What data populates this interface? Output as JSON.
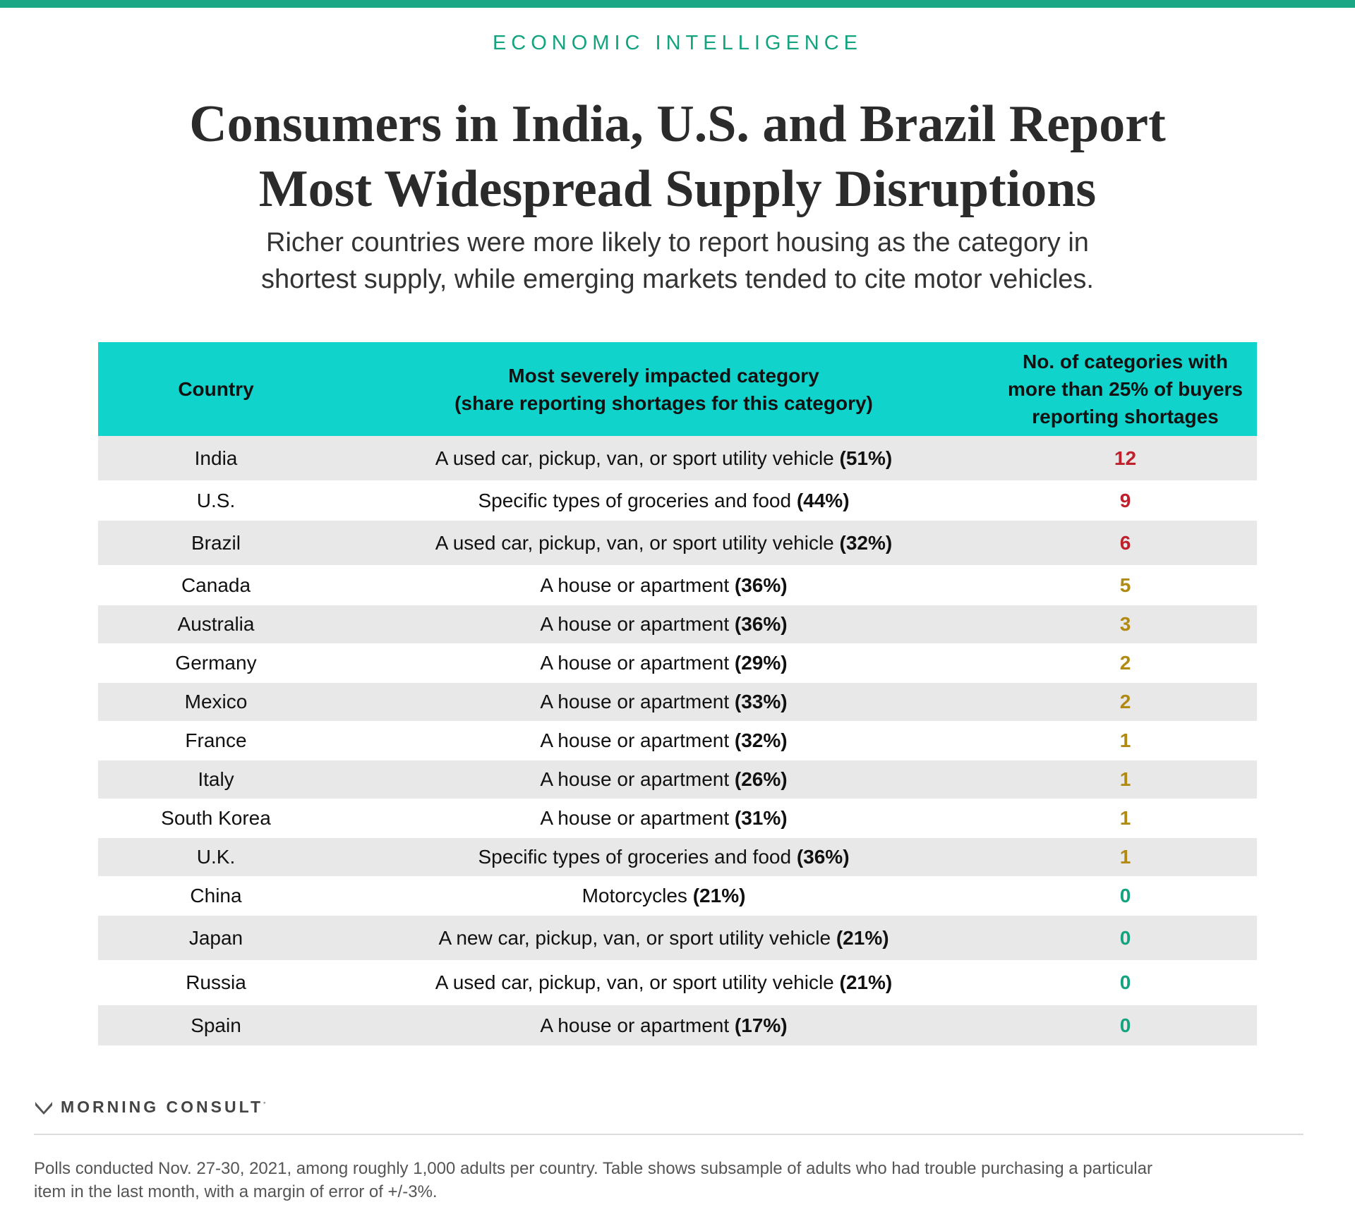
{
  "header": {
    "eyebrow": "ECONOMIC INTELLIGENCE",
    "title_line1": "Consumers in India, U.S. and Brazil Report",
    "title_line2": "Most Widespread Supply Disruptions",
    "subtitle_line1": "Richer countries were more likely to report housing as the category in",
    "subtitle_line2": "shortest supply, while emerging markets tended to cite motor vehicles."
  },
  "colors": {
    "accent": "#1aa786",
    "header_fill": "#10d3cc",
    "high": "#c0202b",
    "medium": "#b08a12",
    "zero": "#14a37f"
  },
  "chart_data": {
    "type": "table",
    "columns": [
      {
        "line1": "Country"
      },
      {
        "line1": "Most severely impacted category",
        "line2": "(share reporting shortages for this category)"
      },
      {
        "line1": "No. of categories with",
        "line2": "more than 25% of buyers",
        "line3": "reporting shortages"
      }
    ],
    "rows": [
      {
        "country": "India",
        "category": "A used car, pickup, van, or sport utility vehicle",
        "share": "(51%)",
        "count": "12",
        "level": "high"
      },
      {
        "country": "U.S.",
        "category": "Specific types of groceries and food",
        "share": "(44%)",
        "count": "9",
        "level": "high"
      },
      {
        "country": "Brazil",
        "category": "A used car, pickup, van, or sport utility vehicle",
        "share": "(32%)",
        "count": "6",
        "level": "high"
      },
      {
        "country": "Canada",
        "category": "A house or apartment",
        "share": "(36%)",
        "count": "5",
        "level": "medium"
      },
      {
        "country": "Australia",
        "category": "A house or apartment",
        "share": "(36%)",
        "count": "3",
        "level": "medium"
      },
      {
        "country": "Germany",
        "category": "A house or apartment",
        "share": "(29%)",
        "count": "2",
        "level": "medium"
      },
      {
        "country": "Mexico",
        "category": "A house or apartment",
        "share": "(33%)",
        "count": "2",
        "level": "medium"
      },
      {
        "country": "France",
        "category": "A house or apartment",
        "share": "(32%)",
        "count": "1",
        "level": "medium"
      },
      {
        "country": "Italy",
        "category": "A house or apartment",
        "share": "(26%)",
        "count": "1",
        "level": "medium"
      },
      {
        "country": "South Korea",
        "category": "A house or apartment",
        "share": "(31%)",
        "count": "1",
        "level": "medium"
      },
      {
        "country": "U.K.",
        "category": "Specific types of groceries and food",
        "share": "(36%)",
        "count": "1",
        "level": "medium"
      },
      {
        "country": "China",
        "category": "Motorcycles",
        "share": "(21%)",
        "count": "0",
        "level": "zero"
      },
      {
        "country": "Japan",
        "category": "A new car, pickup, van, or sport utility vehicle",
        "share": "(21%)",
        "count": "0",
        "level": "zero"
      },
      {
        "country": "Russia",
        "category": "A used car, pickup, van, or sport utility vehicle",
        "share": "(21%)",
        "count": "0",
        "level": "zero"
      },
      {
        "country": "Spain",
        "category": "A house or apartment",
        "share": "(17%)",
        "count": "0",
        "level": "zero"
      }
    ]
  },
  "footer": {
    "logo_icon": "m-logo-icon",
    "brand": "MORNING CONSULT",
    "brand_mark": "°",
    "note_line1": "Polls conducted Nov. 27-30, 2021, among roughly 1,000 adults per country. Table shows subsample of adults who had trouble purchasing a particular",
    "note_line2": "item in the last month, with a margin of error of +/-3%."
  }
}
